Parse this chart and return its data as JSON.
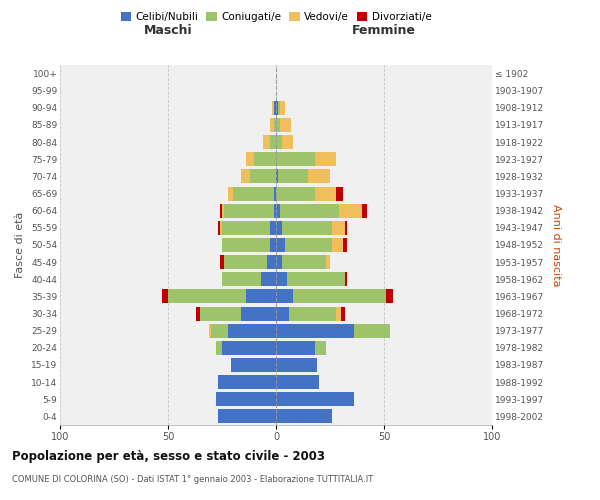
{
  "age_groups": [
    "0-4",
    "5-9",
    "10-14",
    "15-19",
    "20-24",
    "25-29",
    "30-34",
    "35-39",
    "40-44",
    "45-49",
    "50-54",
    "55-59",
    "60-64",
    "65-69",
    "70-74",
    "75-79",
    "80-84",
    "85-89",
    "90-94",
    "95-99",
    "100+"
  ],
  "birth_years": [
    "1998-2002",
    "1993-1997",
    "1988-1992",
    "1983-1987",
    "1978-1982",
    "1973-1977",
    "1968-1972",
    "1963-1967",
    "1958-1962",
    "1953-1957",
    "1948-1952",
    "1943-1947",
    "1938-1942",
    "1933-1937",
    "1928-1932",
    "1923-1927",
    "1918-1922",
    "1913-1917",
    "1908-1912",
    "1903-1907",
    "≤ 1902"
  ],
  "maschi": {
    "celibe": [
      27,
      28,
      27,
      21,
      25,
      22,
      16,
      14,
      7,
      4,
      3,
      3,
      1,
      1,
      0,
      0,
      0,
      0,
      1,
      0,
      0
    ],
    "coniugato": [
      0,
      0,
      0,
      0,
      3,
      8,
      19,
      36,
      18,
      20,
      22,
      22,
      23,
      19,
      12,
      10,
      3,
      1,
      0,
      0,
      0
    ],
    "vedovo": [
      0,
      0,
      0,
      0,
      0,
      1,
      0,
      0,
      0,
      0,
      0,
      1,
      1,
      2,
      4,
      4,
      3,
      2,
      1,
      0,
      0
    ],
    "divorziato": [
      0,
      0,
      0,
      0,
      0,
      0,
      2,
      3,
      0,
      2,
      0,
      1,
      1,
      0,
      0,
      0,
      0,
      0,
      0,
      0,
      0
    ]
  },
  "femmine": {
    "nubile": [
      26,
      36,
      20,
      19,
      18,
      36,
      6,
      8,
      5,
      3,
      4,
      3,
      2,
      0,
      1,
      0,
      0,
      0,
      1,
      0,
      0
    ],
    "coniugata": [
      0,
      0,
      0,
      0,
      5,
      17,
      22,
      43,
      27,
      20,
      22,
      23,
      27,
      18,
      14,
      18,
      3,
      2,
      1,
      0,
      0
    ],
    "vedova": [
      0,
      0,
      0,
      0,
      0,
      0,
      2,
      0,
      0,
      2,
      5,
      6,
      11,
      10,
      10,
      10,
      5,
      5,
      2,
      0,
      0
    ],
    "divorziata": [
      0,
      0,
      0,
      0,
      0,
      0,
      2,
      3,
      1,
      0,
      2,
      1,
      2,
      3,
      0,
      0,
      0,
      0,
      0,
      0,
      0
    ]
  },
  "colors": {
    "celibe": "#4472C4",
    "coniugato": "#9DC36B",
    "vedovo": "#F0BE5A",
    "divorziato": "#C00000"
  },
  "xlim": 100,
  "title": "Popolazione per età, sesso e stato civile - 2003",
  "subtitle": "COMUNE DI COLORINA (SO) - Dati ISTAT 1° gennaio 2003 - Elaborazione TUTTITALIA.IT",
  "xlabel_left": "Maschi",
  "xlabel_right": "Femmine",
  "ylabel_left": "Fasce di età",
  "ylabel_right": "Anni di nascita",
  "legend_labels": [
    "Celibi/Nubili",
    "Coniugati/e",
    "Vedovi/e",
    "Divorziati/e"
  ],
  "background_color": "#ffffff",
  "plot_bg_color": "#f0f0f0",
  "grid_color": "#cccccc"
}
